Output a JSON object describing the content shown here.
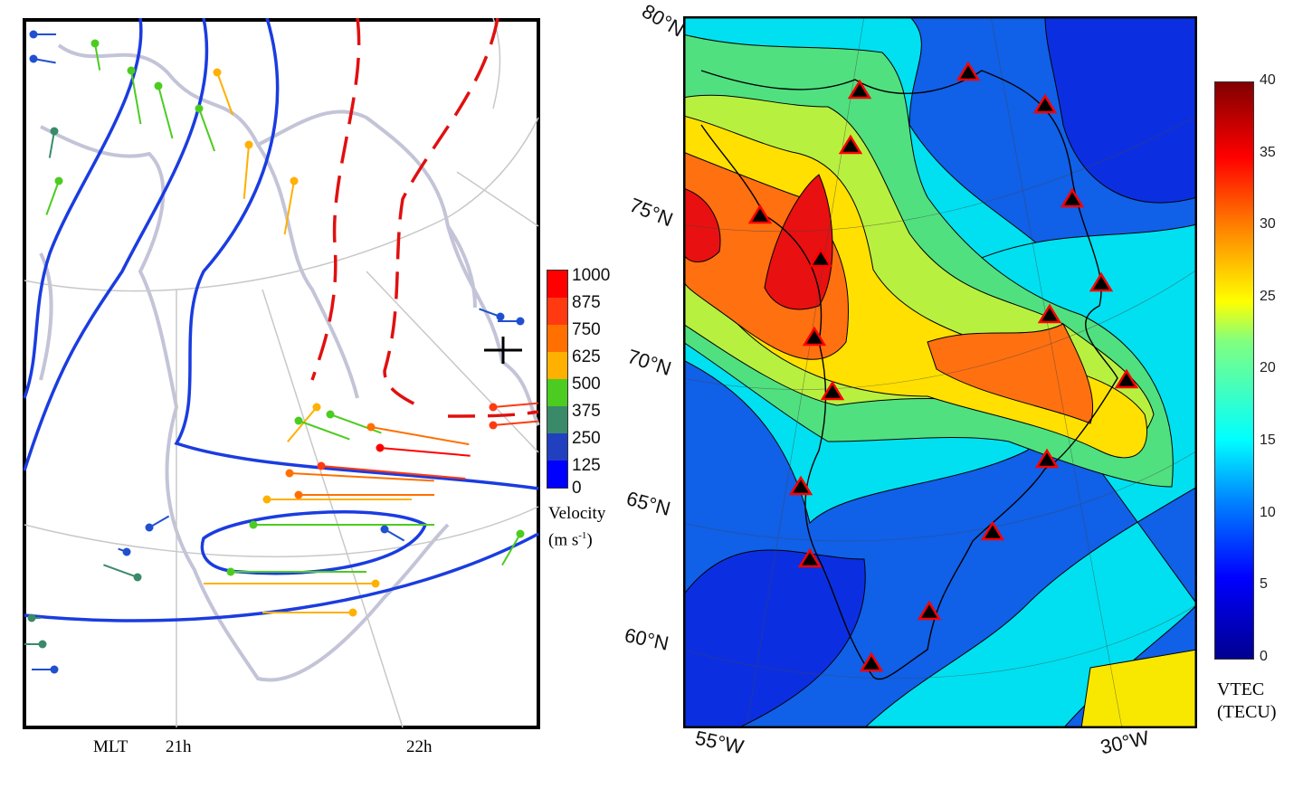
{
  "left_panel": {
    "legend": {
      "colors": [
        "#0000ff",
        "#2040c0",
        "#3a8a6a",
        "#4ccc20",
        "#ffb000",
        "#ff7000",
        "#ff3a10",
        "#ff0000"
      ],
      "labels": [
        "1000",
        "875",
        "750",
        "625",
        "500",
        "375",
        "250",
        "125",
        "0"
      ],
      "title_line1": "Velocity",
      "title_line2": "(m s",
      "title_sup": "-1",
      "title_end": ")"
    },
    "axis": {
      "mlt_label": "MLT",
      "ticks": [
        "21h",
        "22h"
      ]
    }
  },
  "right_panel": {
    "lat_labels": [
      "80°N",
      "75°N",
      "70°N",
      "65°N",
      "60°N"
    ],
    "lon_labels": [
      "55°W",
      "30°W"
    ],
    "colorbar": {
      "ticks": [
        "40",
        "35",
        "30",
        "25",
        "20",
        "15",
        "10",
        "5",
        "0"
      ],
      "range": [
        0,
        40
      ],
      "colormap": "jet",
      "title_line1": "VTEC",
      "title_line2": "(TECU)"
    },
    "station_marker_color": "#ff0000"
  }
}
